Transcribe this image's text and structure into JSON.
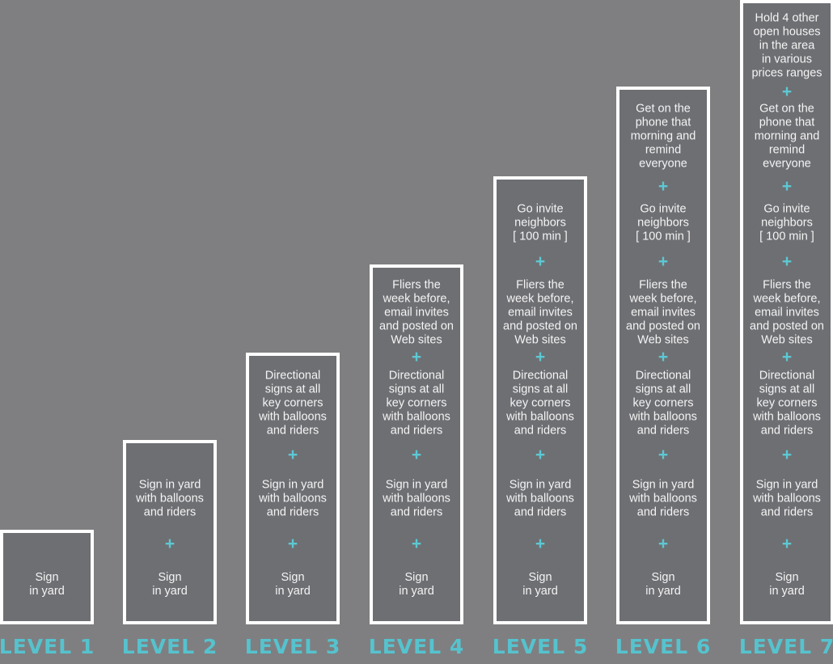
{
  "colors": {
    "background": "#7f7f81",
    "box_fill": "#6e6f73",
    "box_border": "#ffffff",
    "accent": "#55c3ce"
  },
  "plus_symbol": "+",
  "levels": [
    {
      "label": "LEVEL 1",
      "items": [
        "Sign\nin yard"
      ]
    },
    {
      "label": "LEVEL 2",
      "items": [
        "Sign\nin yard",
        "Sign in yard\nwith balloons\nand riders"
      ]
    },
    {
      "label": "LEVEL 3",
      "items": [
        "Sign\nin yard",
        "Sign in yard\nwith balloons\nand riders",
        "Directional\nsigns at all\nkey corners\nwith balloons\nand riders"
      ]
    },
    {
      "label": "LEVEL 4",
      "items": [
        "Sign\nin yard",
        "Sign in yard\nwith balloons\nand riders",
        "Directional\nsigns at all\nkey corners\nwith balloons\nand riders",
        "Fliers the\nweek before,\nemail invites\nand posted on\nWeb sites"
      ]
    },
    {
      "label": "LEVEL 5",
      "items": [
        "Sign\nin yard",
        "Sign in yard\nwith balloons\nand riders",
        "Directional\nsigns at all\nkey corners\nwith balloons\nand riders",
        "Fliers the\nweek before,\nemail invites\nand posted on\nWeb sites",
        "Go invite\nneighbors\n[ 100 min ]"
      ]
    },
    {
      "label": "LEVEL 6",
      "items": [
        "Sign\nin yard",
        "Sign in yard\nwith balloons\nand riders",
        "Directional\nsigns at all\nkey corners\nwith balloons\nand riders",
        "Fliers the\nweek before,\nemail invites\nand posted on\nWeb sites",
        "Go invite\nneighbors\n[ 100 min ]",
        "Get on the\nphone that\nmorning and\nremind\neveryone"
      ]
    },
    {
      "label": "LEVEL 7",
      "items": [
        "Sign\nin yard",
        "Sign in yard\nwith balloons\nand riders",
        "Directional\nsigns at all\nkey corners\nwith balloons\nand riders",
        "Fliers the\nweek before,\nemail invites\nand posted on\nWeb sites",
        "Go invite\nneighbors\n[ 100 min ]",
        "Get on the\nphone that\nmorning and\nremind\neveryone",
        "Hold 4 other\nopen houses\nin the area\nin various\nprices ranges"
      ]
    }
  ]
}
